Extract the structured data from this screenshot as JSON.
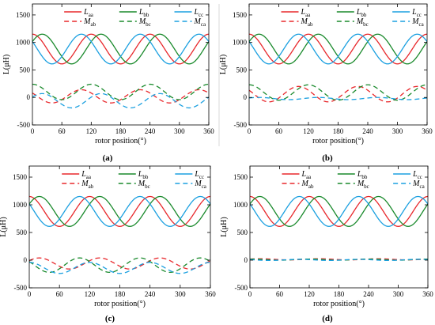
{
  "chart_data": [
    {
      "type": "line",
      "panel_label": "(a)",
      "xlabel": "rotor position(°)",
      "ylabel": "L(μH)",
      "xlim": [
        0,
        360
      ],
      "ylim": [
        -500,
        1700
      ],
      "xticks": [
        0,
        60,
        120,
        180,
        240,
        300,
        360
      ],
      "yticks": [
        -500,
        0,
        500,
        1000,
        1500
      ],
      "grid": false,
      "legend": "top",
      "series": [
        {
          "name": "Laa",
          "style": "solid",
          "color": "#e8282c",
          "offset": 880,
          "amp": 270,
          "phase_deg": 90,
          "period": 120
        },
        {
          "name": "Lbb",
          "style": "solid",
          "color": "#1a8a2c",
          "offset": 880,
          "amp": 270,
          "phase_deg": 30,
          "period": 120
        },
        {
          "name": "Lcc",
          "style": "solid",
          "color": "#1ba0e0",
          "offset": 880,
          "amp": 270,
          "phase_deg": 150,
          "period": 120
        },
        {
          "name": "Mab",
          "style": "dashed",
          "color": "#e8282c",
          "offset": 20,
          "amp": 120,
          "phase_deg": 150,
          "period": 120
        },
        {
          "name": "Mbc",
          "style": "dashed",
          "color": "#1a8a2c",
          "offset": 100,
          "amp": 140,
          "phase_deg": 90,
          "period": 120
        },
        {
          "name": "Mca",
          "style": "dashed",
          "color": "#1ba0e0",
          "offset": -60,
          "amp": 130,
          "phase_deg": 30,
          "period": 120
        }
      ]
    },
    {
      "type": "line",
      "panel_label": "(b)",
      "xlabel": "rotor position(°)",
      "ylabel": "L(μH)",
      "xlim": [
        0,
        360
      ],
      "ylim": [
        -500,
        1700
      ],
      "xticks": [
        0,
        60,
        120,
        180,
        240,
        300,
        360
      ],
      "yticks": [
        -500,
        0,
        500,
        1000,
        1500
      ],
      "grid": false,
      "legend": "top",
      "series": [
        {
          "name": "Laa",
          "style": "solid",
          "color": "#e8282c",
          "offset": 880,
          "amp": 270,
          "phase_deg": 90,
          "period": 120
        },
        {
          "name": "Lbb",
          "style": "solid",
          "color": "#1a8a2c",
          "offset": 880,
          "amp": 270,
          "phase_deg": 30,
          "period": 120
        },
        {
          "name": "Lcc",
          "style": "solid",
          "color": "#1ba0e0",
          "offset": 880,
          "amp": 270,
          "phase_deg": 150,
          "period": 120
        },
        {
          "name": "Mab",
          "style": "dashed",
          "color": "#e8282c",
          "offset": 60,
          "amp": 140,
          "phase_deg": 150,
          "period": 120
        },
        {
          "name": "Mbc",
          "style": "dashed",
          "color": "#1a8a2c",
          "offset": 90,
          "amp": 140,
          "phase_deg": 90,
          "period": 120
        },
        {
          "name": "Mca",
          "style": "dashed",
          "color": "#1ba0e0",
          "offset": -20,
          "amp": 20,
          "phase_deg": 30,
          "period": 120
        }
      ]
    },
    {
      "type": "line",
      "panel_label": "(c)",
      "xlabel": "rotor position(°)",
      "ylabel": "L(μH)",
      "xlim": [
        0,
        360
      ],
      "ylim": [
        -500,
        1700
      ],
      "xticks": [
        0,
        60,
        120,
        180,
        240,
        300,
        360
      ],
      "yticks": [
        -500,
        0,
        500,
        1000,
        1500
      ],
      "grid": false,
      "legend": "top",
      "series": [
        {
          "name": "Laa",
          "style": "solid",
          "color": "#e8282c",
          "offset": 880,
          "amp": 270,
          "phase_deg": 90,
          "period": 120
        },
        {
          "name": "Lbb",
          "style": "solid",
          "color": "#1a8a2c",
          "offset": 880,
          "amp": 270,
          "phase_deg": 30,
          "period": 120
        },
        {
          "name": "Lcc",
          "style": "solid",
          "color": "#1ba0e0",
          "offset": 880,
          "amp": 270,
          "phase_deg": 150,
          "period": 120
        },
        {
          "name": "Mab",
          "style": "dashed",
          "color": "#e8282c",
          "offset": -60,
          "amp": 100,
          "phase_deg": 30,
          "period": 120
        },
        {
          "name": "Mbc",
          "style": "dashed",
          "color": "#1a8a2c",
          "offset": -90,
          "amp": 130,
          "phase_deg": 150,
          "period": 120
        },
        {
          "name": "Mca",
          "style": "dashed",
          "color": "#1ba0e0",
          "offset": -140,
          "amp": 100,
          "phase_deg": 90,
          "period": 120
        }
      ]
    },
    {
      "type": "line",
      "panel_label": "(d)",
      "xlabel": "rotor position(°)",
      "ylabel": "L(μH)",
      "xlim": [
        0,
        360
      ],
      "ylim": [
        -500,
        1700
      ],
      "xticks": [
        0,
        60,
        120,
        180,
        240,
        300,
        360
      ],
      "yticks": [
        -500,
        0,
        500,
        1000,
        1500
      ],
      "grid": false,
      "legend": "top",
      "series": [
        {
          "name": "Laa",
          "style": "solid",
          "color": "#e8282c",
          "offset": 880,
          "amp": 270,
          "phase_deg": 90,
          "period": 120
        },
        {
          "name": "Lbb",
          "style": "solid",
          "color": "#1a8a2c",
          "offset": 880,
          "amp": 270,
          "phase_deg": 30,
          "period": 120
        },
        {
          "name": "Lcc",
          "style": "solid",
          "color": "#1ba0e0",
          "offset": 880,
          "amp": 270,
          "phase_deg": 150,
          "period": 120
        },
        {
          "name": "Mab",
          "style": "dashed",
          "color": "#e8282c",
          "offset": 15,
          "amp": 10,
          "phase_deg": 30,
          "period": 120
        },
        {
          "name": "Mbc",
          "style": "dashed",
          "color": "#1a8a2c",
          "offset": 10,
          "amp": 10,
          "phase_deg": 90,
          "period": 120
        },
        {
          "name": "Mca",
          "style": "dashed",
          "color": "#1ba0e0",
          "offset": 5,
          "amp": 10,
          "phase_deg": 150,
          "period": 120
        }
      ]
    }
  ]
}
